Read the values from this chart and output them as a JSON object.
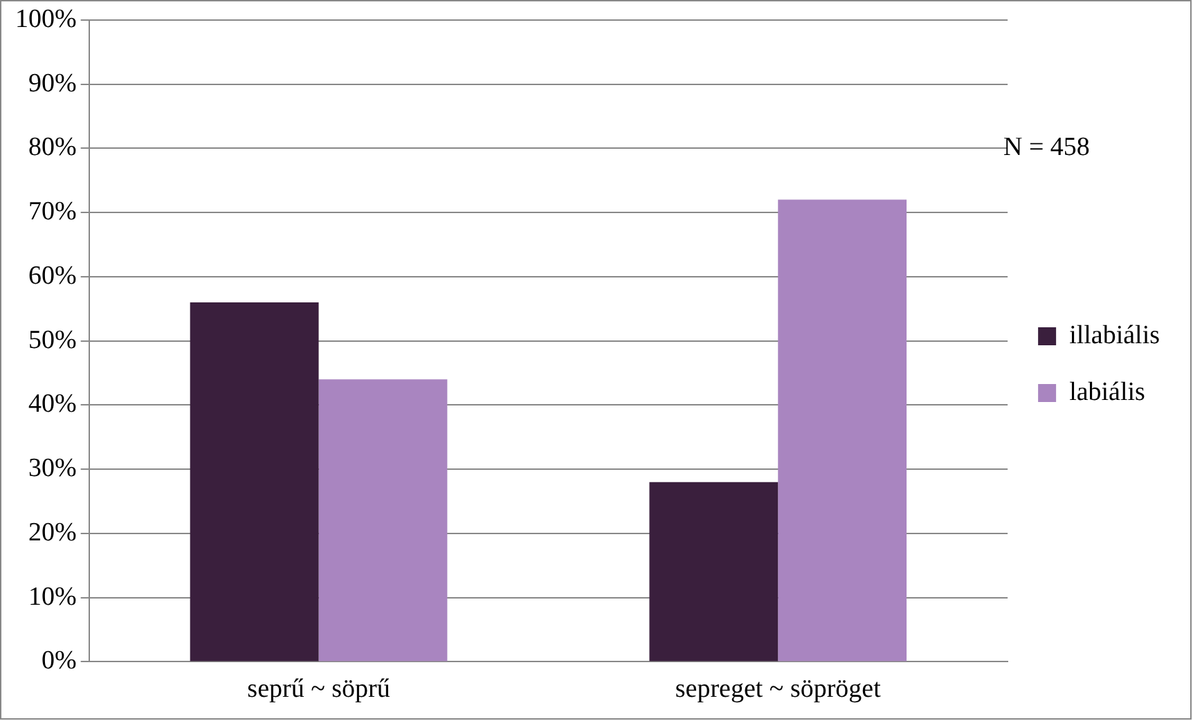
{
  "chart_data": {
    "type": "bar",
    "categories": [
      "seprű ~ söprű",
      "sepreget ~ söpröget"
    ],
    "series": [
      {
        "name": "illabiális",
        "color": "#3a1f3d",
        "values": [
          56,
          28
        ]
      },
      {
        "name": "labiális",
        "color": "#a985c0",
        "values": [
          44,
          72
        ]
      }
    ],
    "ylim": [
      0,
      100
    ],
    "yticks": [
      {
        "value": 0,
        "label": "0%"
      },
      {
        "value": 10,
        "label": "10%"
      },
      {
        "value": 20,
        "label": "20%"
      },
      {
        "value": 30,
        "label": "30%"
      },
      {
        "value": 40,
        "label": "40%"
      },
      {
        "value": 50,
        "label": "50%"
      },
      {
        "value": 60,
        "label": "60%"
      },
      {
        "value": 70,
        "label": "70%"
      },
      {
        "value": 80,
        "label": "80%"
      },
      {
        "value": 90,
        "label": "90%"
      },
      {
        "value": 100,
        "label": "100%"
      }
    ],
    "grid": "y",
    "legend": "right",
    "annotations": [
      "N = 458"
    ]
  }
}
